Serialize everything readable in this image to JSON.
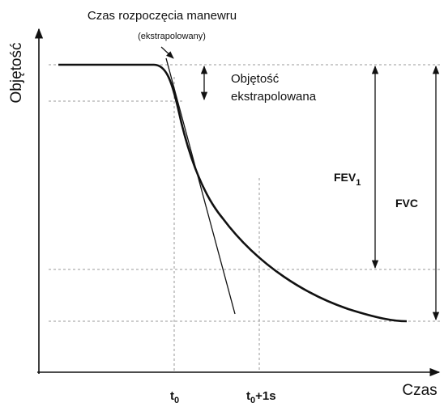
{
  "axes": {
    "y_label": "Objętość",
    "x_label": "Czas"
  },
  "annotations": {
    "start_time": "Czas rozpoczęcia manewru",
    "start_time_note": "(ekstrapolowany)",
    "extrapolated_volume": [
      "Objętość",
      "ekstrapolowana"
    ],
    "fev": {
      "main": "FEV",
      "sub": "1"
    },
    "fvc": "FVC",
    "t0": {
      "main": "t",
      "sub": "0"
    },
    "t0_plus": {
      "main": "t",
      "sub": "0",
      "rest": "+1s"
    }
  }
}
